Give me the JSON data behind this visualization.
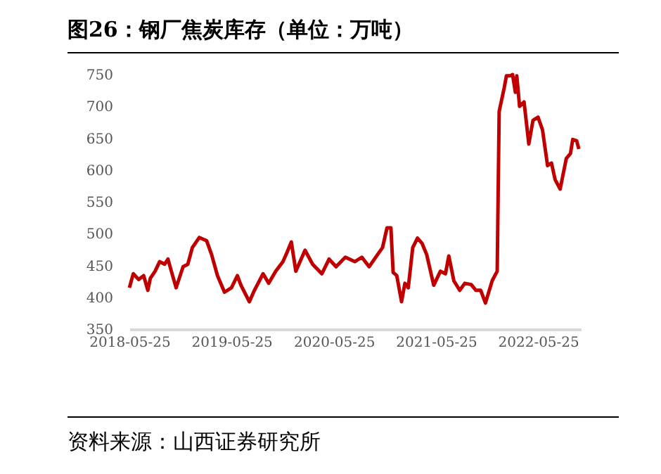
{
  "chart_data": {
    "type": "line",
    "title": "图26：钢厂焦炭库存（单位：万吨）",
    "annotations": [
      "资料来源：山西证券研究所"
    ],
    "x": [
      "2018-05-25",
      "2018-06-08",
      "2018-06-27",
      "2018-07-15",
      "2018-07-30",
      "2018-08-08",
      "2018-08-25",
      "2018-09-10",
      "2018-09-28",
      "2018-10-10",
      "2018-10-22",
      "2018-11-08",
      "2018-12-03",
      "2018-12-20",
      "2019-01-05",
      "2019-01-30",
      "2019-02-25",
      "2019-03-15",
      "2019-04-05",
      "2019-04-30",
      "2019-05-25",
      "2019-06-15",
      "2019-06-28",
      "2019-07-28",
      "2019-08-15",
      "2019-09-15",
      "2019-10-05",
      "2019-10-30",
      "2019-11-25",
      "2019-12-10",
      "2019-12-25",
      "2020-01-10",
      "2020-02-12",
      "2020-03-10",
      "2020-04-12",
      "2020-05-08",
      "2020-06-02",
      "2020-07-05",
      "2020-08-08",
      "2020-09-02",
      "2020-09-28",
      "2020-10-28",
      "2020-11-15",
      "2020-12-01",
      "2020-12-15",
      "2020-12-23",
      "2021-01-05",
      "2021-01-22",
      "2021-02-03",
      "2021-02-15",
      "2021-03-03",
      "2021-03-20",
      "2021-04-05",
      "2021-04-22",
      "2021-05-17",
      "2021-06-10",
      "2021-06-28",
      "2021-07-10",
      "2021-07-28",
      "2021-08-18",
      "2021-09-05",
      "2021-09-28",
      "2021-10-15",
      "2021-11-01",
      "2021-11-18",
      "2021-12-12",
      "2021-12-30",
      "2022-01-06",
      "2022-01-24",
      "2022-02-01",
      "2022-02-15",
      "2022-02-23",
      "2022-03-05",
      "2022-03-10",
      "2022-03-20",
      "2022-04-05",
      "2022-04-22",
      "2022-05-07",
      "2022-05-25",
      "2022-06-10",
      "2022-06-28",
      "2022-07-12",
      "2022-07-25",
      "2022-08-12",
      "2022-09-03",
      "2022-09-18",
      "2022-09-26",
      "2022-10-10",
      "2022-10-18"
    ],
    "series": [
      {
        "color": "#c00000",
        "values": [
          415,
          437,
          428,
          434,
          411,
          430,
          441,
          456,
          452,
          460,
          441,
          415,
          448,
          452,
          478,
          494,
          489,
          467,
          434,
          408,
          415,
          434,
          419,
          393,
          411,
          437,
          422,
          441,
          456,
          471,
          487,
          441,
          474,
          452,
          437,
          460,
          448,
          463,
          456,
          463,
          448,
          467,
          478,
          509,
          509,
          439,
          434,
          393,
          422,
          415,
          478,
          493,
          485,
          467,
          419,
          441,
          437,
          465,
          426,
          411,
          422,
          420,
          411,
          411,
          391,
          426,
          441,
          692,
          729,
          748,
          748,
          750,
          722,
          748,
          700,
          707,
          641,
          678,
          683,
          663,
          607,
          611,
          585,
          570,
          618,
          626,
          648,
          646,
          633
        ]
      }
    ],
    "xlim": [
      "2018-05-25",
      "2022-10-25"
    ],
    "xticks": [
      "2018-05-25",
      "2019-05-25",
      "2020-05-25",
      "2021-05-25",
      "2022-05-25"
    ],
    "ylim": [
      350,
      750
    ],
    "yticks": [
      350,
      400,
      450,
      500,
      550,
      600,
      650,
      700,
      750
    ],
    "grid": false,
    "legend": false,
    "marker": "none",
    "line_style": "solid"
  }
}
